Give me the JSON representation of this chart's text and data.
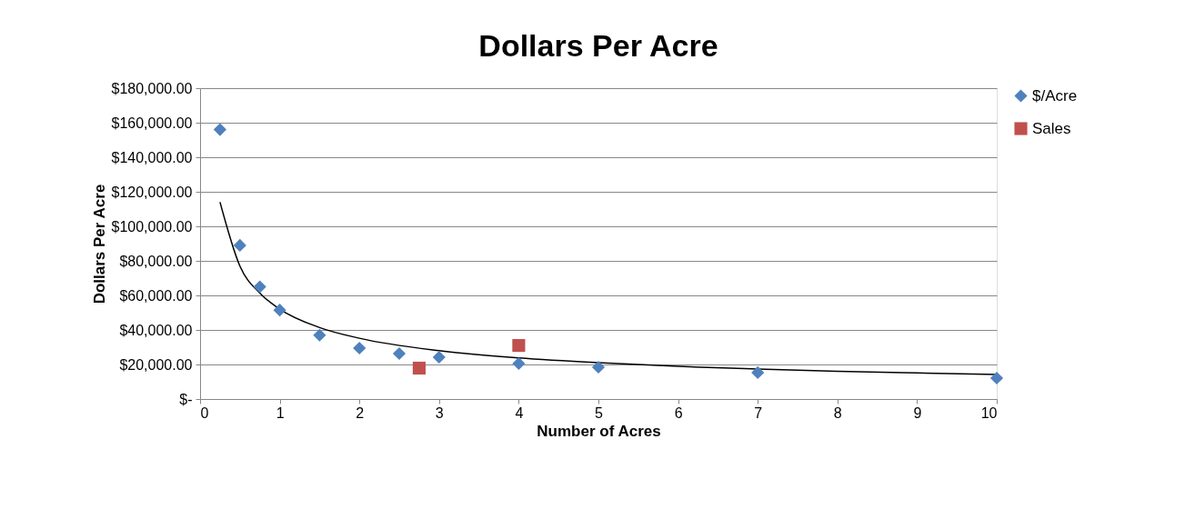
{
  "chart_data": {
    "type": "scatter",
    "title": "Dollars Per Acre",
    "xlabel": "Number of Acres",
    "ylabel": "Dollars Per Acre",
    "xlim": [
      0,
      10
    ],
    "xticks": [
      0,
      1,
      2,
      3,
      4,
      5,
      6,
      7,
      8,
      9,
      10
    ],
    "ylim": [
      0,
      180000
    ],
    "yticks": [
      {
        "value": 0,
        "label": "$-"
      },
      {
        "value": 20000,
        "label": "$20,000.00"
      },
      {
        "value": 40000,
        "label": "$40,000.00"
      },
      {
        "value": 60000,
        "label": "$60,000.00"
      },
      {
        "value": 80000,
        "label": "$80,000.00"
      },
      {
        "value": 100000,
        "label": "$100,000.00"
      },
      {
        "value": 120000,
        "label": "$120,000.00"
      },
      {
        "value": 140000,
        "label": "$140,000.00"
      },
      {
        "value": 160000,
        "label": "$160,000.00"
      },
      {
        "value": 180000,
        "label": "$180,000.00"
      }
    ],
    "grid": "y",
    "legend": "right",
    "series": [
      {
        "type": "line",
        "color": "#000000",
        "marker": "none",
        "line_style": "solid",
        "x": [
          0.25,
          0.5,
          0.75,
          1,
          1.5,
          2,
          3,
          4,
          5,
          6,
          7,
          8,
          9,
          10
        ],
        "values": [
          114000,
          77000,
          61300,
          52100,
          41400,
          35200,
          28000,
          23800,
          21000,
          18900,
          17400,
          16100,
          15100,
          14200
        ]
      },
      {
        "name": "$/Acre",
        "color": "#4f81bd",
        "marker": "diamond",
        "x": [
          0.25,
          0.5,
          0.75,
          1,
          1.5,
          2,
          2.5,
          3,
          4,
          5,
          7,
          10
        ],
        "values": [
          156000,
          89000,
          65000,
          51500,
          37000,
          29500,
          26300,
          24200,
          20500,
          18400,
          15300,
          12100
        ]
      },
      {
        "name": "Sales",
        "color": "#c0504d",
        "marker": "square",
        "x": [
          2.75,
          4
        ],
        "values": [
          17900,
          31000
        ]
      }
    ]
  }
}
